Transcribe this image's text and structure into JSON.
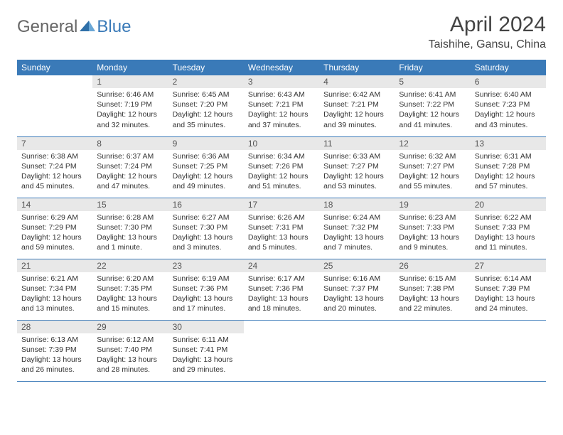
{
  "logo": {
    "part1": "General",
    "part2": "Blue"
  },
  "title": "April 2024",
  "location": "Taishihe, Gansu, China",
  "colors": {
    "header_bg": "#3a7ab8",
    "header_text": "#ffffff",
    "daynum_bg": "#e8e8e8",
    "border": "#3a7ab8",
    "body_text": "#333333",
    "background": "#ffffff"
  },
  "typography": {
    "title_fontsize": 30,
    "location_fontsize": 16,
    "header_fontsize": 12,
    "cell_fontsize": 10.5
  },
  "weekdays": [
    "Sunday",
    "Monday",
    "Tuesday",
    "Wednesday",
    "Thursday",
    "Friday",
    "Saturday"
  ],
  "weeks": [
    [
      null,
      {
        "n": "1",
        "sr": "Sunrise: 6:46 AM",
        "ss": "Sunset: 7:19 PM",
        "dl": "Daylight: 12 hours and 32 minutes."
      },
      {
        "n": "2",
        "sr": "Sunrise: 6:45 AM",
        "ss": "Sunset: 7:20 PM",
        "dl": "Daylight: 12 hours and 35 minutes."
      },
      {
        "n": "3",
        "sr": "Sunrise: 6:43 AM",
        "ss": "Sunset: 7:21 PM",
        "dl": "Daylight: 12 hours and 37 minutes."
      },
      {
        "n": "4",
        "sr": "Sunrise: 6:42 AM",
        "ss": "Sunset: 7:21 PM",
        "dl": "Daylight: 12 hours and 39 minutes."
      },
      {
        "n": "5",
        "sr": "Sunrise: 6:41 AM",
        "ss": "Sunset: 7:22 PM",
        "dl": "Daylight: 12 hours and 41 minutes."
      },
      {
        "n": "6",
        "sr": "Sunrise: 6:40 AM",
        "ss": "Sunset: 7:23 PM",
        "dl": "Daylight: 12 hours and 43 minutes."
      }
    ],
    [
      {
        "n": "7",
        "sr": "Sunrise: 6:38 AM",
        "ss": "Sunset: 7:24 PM",
        "dl": "Daylight: 12 hours and 45 minutes."
      },
      {
        "n": "8",
        "sr": "Sunrise: 6:37 AM",
        "ss": "Sunset: 7:24 PM",
        "dl": "Daylight: 12 hours and 47 minutes."
      },
      {
        "n": "9",
        "sr": "Sunrise: 6:36 AM",
        "ss": "Sunset: 7:25 PM",
        "dl": "Daylight: 12 hours and 49 minutes."
      },
      {
        "n": "10",
        "sr": "Sunrise: 6:34 AM",
        "ss": "Sunset: 7:26 PM",
        "dl": "Daylight: 12 hours and 51 minutes."
      },
      {
        "n": "11",
        "sr": "Sunrise: 6:33 AM",
        "ss": "Sunset: 7:27 PM",
        "dl": "Daylight: 12 hours and 53 minutes."
      },
      {
        "n": "12",
        "sr": "Sunrise: 6:32 AM",
        "ss": "Sunset: 7:27 PM",
        "dl": "Daylight: 12 hours and 55 minutes."
      },
      {
        "n": "13",
        "sr": "Sunrise: 6:31 AM",
        "ss": "Sunset: 7:28 PM",
        "dl": "Daylight: 12 hours and 57 minutes."
      }
    ],
    [
      {
        "n": "14",
        "sr": "Sunrise: 6:29 AM",
        "ss": "Sunset: 7:29 PM",
        "dl": "Daylight: 12 hours and 59 minutes."
      },
      {
        "n": "15",
        "sr": "Sunrise: 6:28 AM",
        "ss": "Sunset: 7:30 PM",
        "dl": "Daylight: 13 hours and 1 minute."
      },
      {
        "n": "16",
        "sr": "Sunrise: 6:27 AM",
        "ss": "Sunset: 7:30 PM",
        "dl": "Daylight: 13 hours and 3 minutes."
      },
      {
        "n": "17",
        "sr": "Sunrise: 6:26 AM",
        "ss": "Sunset: 7:31 PM",
        "dl": "Daylight: 13 hours and 5 minutes."
      },
      {
        "n": "18",
        "sr": "Sunrise: 6:24 AM",
        "ss": "Sunset: 7:32 PM",
        "dl": "Daylight: 13 hours and 7 minutes."
      },
      {
        "n": "19",
        "sr": "Sunrise: 6:23 AM",
        "ss": "Sunset: 7:33 PM",
        "dl": "Daylight: 13 hours and 9 minutes."
      },
      {
        "n": "20",
        "sr": "Sunrise: 6:22 AM",
        "ss": "Sunset: 7:33 PM",
        "dl": "Daylight: 13 hours and 11 minutes."
      }
    ],
    [
      {
        "n": "21",
        "sr": "Sunrise: 6:21 AM",
        "ss": "Sunset: 7:34 PM",
        "dl": "Daylight: 13 hours and 13 minutes."
      },
      {
        "n": "22",
        "sr": "Sunrise: 6:20 AM",
        "ss": "Sunset: 7:35 PM",
        "dl": "Daylight: 13 hours and 15 minutes."
      },
      {
        "n": "23",
        "sr": "Sunrise: 6:19 AM",
        "ss": "Sunset: 7:36 PM",
        "dl": "Daylight: 13 hours and 17 minutes."
      },
      {
        "n": "24",
        "sr": "Sunrise: 6:17 AM",
        "ss": "Sunset: 7:36 PM",
        "dl": "Daylight: 13 hours and 18 minutes."
      },
      {
        "n": "25",
        "sr": "Sunrise: 6:16 AM",
        "ss": "Sunset: 7:37 PM",
        "dl": "Daylight: 13 hours and 20 minutes."
      },
      {
        "n": "26",
        "sr": "Sunrise: 6:15 AM",
        "ss": "Sunset: 7:38 PM",
        "dl": "Daylight: 13 hours and 22 minutes."
      },
      {
        "n": "27",
        "sr": "Sunrise: 6:14 AM",
        "ss": "Sunset: 7:39 PM",
        "dl": "Daylight: 13 hours and 24 minutes."
      }
    ],
    [
      {
        "n": "28",
        "sr": "Sunrise: 6:13 AM",
        "ss": "Sunset: 7:39 PM",
        "dl": "Daylight: 13 hours and 26 minutes."
      },
      {
        "n": "29",
        "sr": "Sunrise: 6:12 AM",
        "ss": "Sunset: 7:40 PM",
        "dl": "Daylight: 13 hours and 28 minutes."
      },
      {
        "n": "30",
        "sr": "Sunrise: 6:11 AM",
        "ss": "Sunset: 7:41 PM",
        "dl": "Daylight: 13 hours and 29 minutes."
      },
      null,
      null,
      null,
      null
    ]
  ]
}
